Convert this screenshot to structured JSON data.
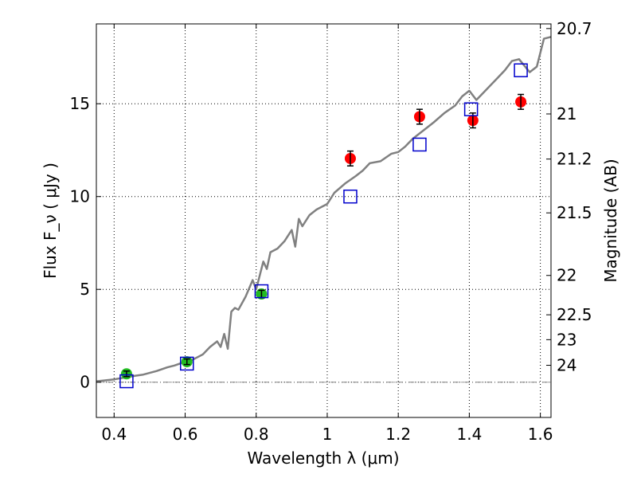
{
  "chart_data": {
    "type": "scatter",
    "title": "",
    "xlabel": "Wavelength  λ (μm)",
    "ylabel": "Flux  F_ν  ( μJy )",
    "y2label": "Magnitude (AB)",
    "xlim": [
      0.35,
      1.63
    ],
    "ylim": [
      -1.9,
      19.3
    ],
    "grid": true,
    "x_ticks": [
      0.4,
      0.6,
      0.8,
      1.0,
      1.2,
      1.4,
      1.6
    ],
    "x_tick_labels": [
      "0.4",
      "0.6",
      "0.8",
      "1",
      "1.2",
      "1.4",
      "1.6"
    ],
    "y_ticks": [
      0,
      5,
      10,
      15
    ],
    "y_tick_labels": [
      "0",
      "5",
      "10",
      "15"
    ],
    "y2_ticks": [
      {
        "label": "20.7",
        "flux": 19.05
      },
      {
        "label": "21",
        "flux": 14.45
      },
      {
        "label": "21.2",
        "flux": 12.02
      },
      {
        "label": "21.5",
        "flux": 9.12
      },
      {
        "label": "22",
        "flux": 5.75
      },
      {
        "label": "22.5",
        "flux": 3.63
      },
      {
        "label": "23",
        "flux": 2.29
      },
      {
        "label": "24",
        "flux": 0.91
      }
    ],
    "zero_line": 0,
    "colors": {
      "model": "#808080",
      "green": "#22bb22",
      "red": "#ff0000",
      "square": "#0000cc",
      "error": "#000000",
      "zero_line": "#808080"
    },
    "series": [
      {
        "name": "model spectrum",
        "kind": "line",
        "x": [
          0.35,
          0.4,
          0.43,
          0.46,
          0.48,
          0.5,
          0.52,
          0.55,
          0.57,
          0.6,
          0.62,
          0.65,
          0.66,
          0.67,
          0.69,
          0.7,
          0.71,
          0.72,
          0.73,
          0.74,
          0.75,
          0.77,
          0.79,
          0.8,
          0.82,
          0.83,
          0.84,
          0.86,
          0.88,
          0.9,
          0.91,
          0.92,
          0.93,
          0.95,
          0.97,
          1.0,
          1.02,
          1.05,
          1.08,
          1.1,
          1.12,
          1.15,
          1.18,
          1.2,
          1.22,
          1.24,
          1.26,
          1.28,
          1.3,
          1.33,
          1.36,
          1.38,
          1.4,
          1.42,
          1.44,
          1.46,
          1.48,
          1.5,
          1.52,
          1.54,
          1.57,
          1.59,
          1.61,
          1.63
        ],
        "y": [
          0.05,
          0.15,
          0.25,
          0.35,
          0.4,
          0.5,
          0.6,
          0.8,
          0.9,
          1.1,
          1.2,
          1.5,
          1.7,
          1.9,
          2.2,
          1.9,
          2.6,
          1.8,
          3.8,
          4.0,
          3.9,
          4.6,
          5.5,
          5.0,
          6.5,
          6.1,
          7.0,
          7.2,
          7.6,
          8.2,
          7.3,
          8.8,
          8.4,
          9.0,
          9.3,
          9.6,
          10.2,
          10.7,
          11.1,
          11.4,
          11.8,
          11.9,
          12.3,
          12.4,
          12.7,
          13.1,
          13.4,
          13.7,
          14.0,
          14.5,
          14.9,
          15.4,
          15.7,
          15.2,
          15.6,
          16.0,
          16.4,
          16.8,
          17.3,
          17.4,
          16.7,
          17.0,
          18.5,
          18.6
        ]
      },
      {
        "name": "green points",
        "kind": "points",
        "marker": "circle",
        "x": [
          0.435,
          0.605,
          0.815
        ],
        "y": [
          0.45,
          1.1,
          4.75
        ],
        "yerr": [
          0.15,
          0.15,
          0.2
        ]
      },
      {
        "name": "red points",
        "kind": "points",
        "marker": "circle",
        "x": [
          1.065,
          1.26,
          1.41,
          1.545
        ],
        "y": [
          12.05,
          14.3,
          14.1,
          15.1
        ],
        "yerr": [
          0.4,
          0.4,
          0.4,
          0.4
        ]
      },
      {
        "name": "blue squares",
        "kind": "points",
        "marker": "square",
        "x": [
          0.435,
          0.605,
          0.815,
          1.065,
          1.26,
          1.405,
          1.545
        ],
        "y": [
          0.05,
          1.0,
          4.9,
          10.0,
          12.8,
          14.7,
          16.8
        ]
      }
    ]
  }
}
